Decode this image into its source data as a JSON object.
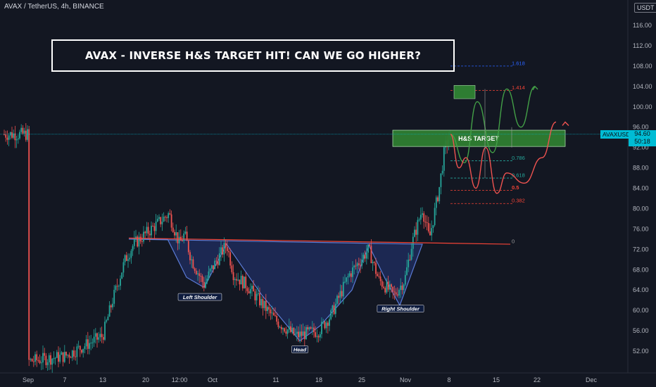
{
  "header": {
    "symbol_info": "AVAX / TetherUS, 4h, BINANCE",
    "currency": "USDT"
  },
  "title": "AVAX - INVERSE H&S TARGET HIT! CAN WE GO HIGHER?",
  "price_tag": {
    "symbol": "AVAXUSDT",
    "price": "94.60",
    "countdown": "50:18"
  },
  "colors": {
    "background": "#131722",
    "up_candle": "#26a69a",
    "down_candle": "#ef5350",
    "pattern_fill": "#1e2a58",
    "pattern_stroke": "#5b7bd5",
    "neckline": "#f44336",
    "target_box": "#2e7d32",
    "fib_top": "#2962ff",
    "fib_1414": "#f44336",
    "fib_0786": "#26a69a",
    "green_path": "#43a047",
    "red_path": "#ef5350",
    "price_line": "#00bcd4"
  },
  "chart_data": {
    "type": "candlestick",
    "symbol": "AVAX / TetherUS",
    "interval": "4h",
    "exchange": "BINANCE",
    "current_price": 94.6,
    "y_axis": {
      "ticks": [
        52,
        56,
        60,
        64,
        68,
        72,
        76,
        80,
        84,
        88,
        92,
        96,
        100,
        104,
        108,
        112,
        116
      ],
      "ylim": [
        49,
        120
      ]
    },
    "x_axis": {
      "ticks": [
        "Sep",
        "7",
        "13",
        "20",
        "12:00",
        "Oct",
        "11",
        "18",
        "25",
        "Nov",
        "8",
        "15",
        "22",
        "Dec"
      ]
    },
    "price_path": [
      {
        "x": "Sep",
        "y": 50.0
      },
      {
        "x": "7",
        "y": 51.0
      },
      {
        "x": "13",
        "y": 55.0
      },
      {
        "x": "13",
        "y": 62.0
      },
      {
        "x": "13",
        "y": 70.0
      },
      {
        "x": "20",
        "y": 73.0
      },
      {
        "x": "20",
        "y": 79.0
      },
      {
        "x": "20",
        "y": 73.0
      },
      {
        "x": "20",
        "y": 75.0
      },
      {
        "x": "12:00",
        "y": 70.0
      },
      {
        "x": "12:00",
        "y": 65.0
      },
      {
        "x": "12:00",
        "y": 68.0
      },
      {
        "x": "Oct",
        "y": 73.0
      },
      {
        "x": "Oct",
        "y": 67.0
      },
      {
        "x": "Oct",
        "y": 65.0
      },
      {
        "x": "11",
        "y": 58.0
      },
      {
        "x": "11",
        "y": 55.0
      },
      {
        "x": "18",
        "y": 56.0
      },
      {
        "x": "18",
        "y": 59.0
      },
      {
        "x": "25",
        "y": 67.0
      },
      {
        "x": "25",
        "y": 72.0
      },
      {
        "x": "25",
        "y": 66.0
      },
      {
        "x": "Nov",
        "y": 63.0
      },
      {
        "x": "Nov",
        "y": 66.0
      },
      {
        "x": "Nov",
        "y": 73.0
      },
      {
        "x": "Nov",
        "y": 80.0
      },
      {
        "x": "8",
        "y": 74.0
      },
      {
        "x": "8",
        "y": 84.0
      },
      {
        "x": "8",
        "y": 92.0
      },
      {
        "x": "8",
        "y": 94.6
      }
    ],
    "pattern": {
      "name": "Inverse Head and Shoulders",
      "labels": [
        "Left Shoulder",
        "Head",
        "Right Shoulder"
      ],
      "neckline_value": 73.0
    },
    "target": {
      "label": "H&S TARGET",
      "low": 92.2,
      "high": 95.4
    },
    "fib_levels": [
      {
        "label": "1.618",
        "value": 108.0
      },
      {
        "label": "1.414",
        "value": 103.2
      },
      {
        "label": "0.786",
        "value": 89.4
      },
      {
        "label": "0.618",
        "value": 86.0
      },
      {
        "label": "0.5",
        "value": 83.6
      },
      {
        "label": "0.382",
        "value": 81.0
      },
      {
        "label": "0",
        "value": 73.0
      }
    ],
    "projections": {
      "bullish": [
        94.6,
        89,
        101,
        91,
        103.5,
        96,
        104
      ],
      "bearish": [
        94.6,
        88,
        90,
        84,
        92,
        83,
        87,
        85,
        90,
        97
      ]
    }
  }
}
